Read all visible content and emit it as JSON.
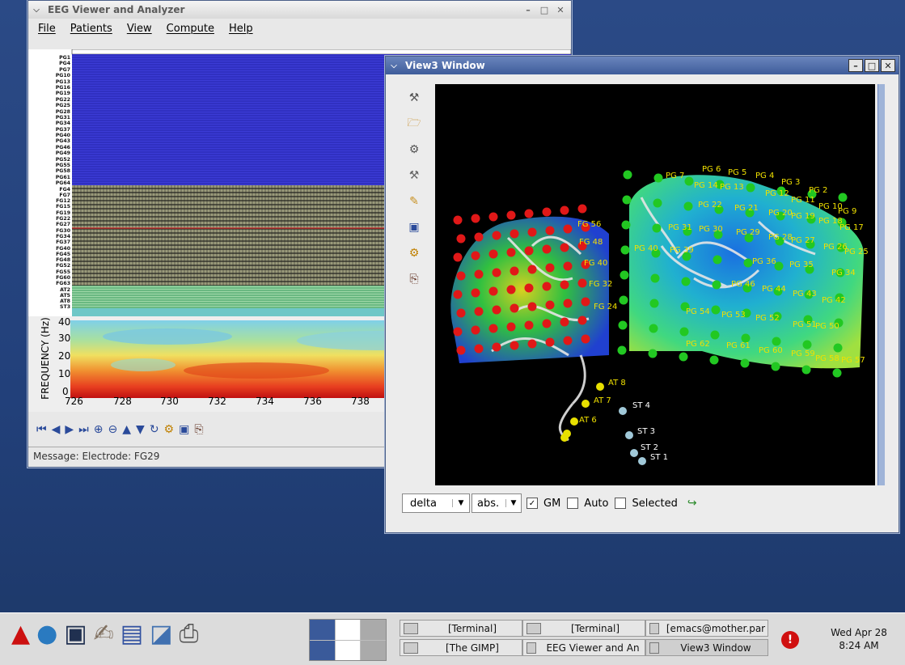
{
  "eeg_window": {
    "title": "EEG Viewer and Analyzer",
    "menu": [
      "File",
      "Patients",
      "View",
      "Compute",
      "Help"
    ],
    "channels": [
      "PG1",
      "PG4",
      "PG7",
      "PG10",
      "PG13",
      "PG16",
      "PG19",
      "PG22",
      "PG25",
      "PG28",
      "PG31",
      "PG34",
      "PG37",
      "PG40",
      "PG43",
      "PG46",
      "PG49",
      "PG52",
      "PG55",
      "PG58",
      "PG61",
      "PG64",
      "FG4",
      "FG7",
      "FG12",
      "FG15",
      "FG19",
      "FG22",
      "FG27",
      "FG30",
      "FG34",
      "FG37",
      "FG40",
      "FG45",
      "FG48",
      "FG52",
      "FG55",
      "FG60",
      "FG63",
      "AT2",
      "AT5",
      "AT8",
      "ST3"
    ],
    "spectrogram": {
      "ylabel": "FREQUENCY (Hz)",
      "yticks": [
        "40",
        "30",
        "20",
        "10",
        "0"
      ],
      "xticks": [
        "726",
        "728",
        "730",
        "732",
        "734",
        "736",
        "738"
      ]
    },
    "message": "Message: Electrode: FG29"
  },
  "view3_window": {
    "title": "View3 Window",
    "band_select": "delta",
    "mode_select": "abs.",
    "checkboxes": [
      {
        "label": "GM",
        "checked": true
      },
      {
        "label": "Auto",
        "checked": false
      },
      {
        "label": "Selected",
        "checked": false
      }
    ],
    "labels": {
      "pg": [
        "PG 7",
        "PG 6",
        "PG 5",
        "PG 4",
        "PG 3",
        "PG 2",
        "PG 14",
        "PG 13",
        "PG 12",
        "PG 11",
        "PG 10",
        "PG 9",
        "PG 22",
        "PG 21",
        "PG 20",
        "PG 19",
        "PG 18",
        "PG 17",
        "PG 31",
        "PG 30",
        "PG 29",
        "PG 28",
        "PG 27",
        "PG 26",
        "PG 25",
        "PG 40",
        "PG 39",
        "PG 36",
        "PG 35",
        "PG 34",
        "PG 46",
        "PG 44",
        "PG 43",
        "PG 42",
        "PG 54",
        "PG 53",
        "PG 52",
        "PG 51",
        "PG 50",
        "PG 62",
        "PG 61",
        "PG 60",
        "PG 59",
        "PG 58",
        "PG 57"
      ],
      "fg": [
        "FG 48",
        "FG 40",
        "FG 32",
        "FG 24",
        "FG 56"
      ],
      "at": [
        "AT 8",
        "AT 7",
        "AT 6"
      ],
      "st": [
        "ST 4",
        "ST 3",
        "ST 2",
        "ST 1"
      ]
    }
  },
  "taskbar": {
    "buttons": [
      {
        "label": "[Terminal]",
        "row": 0,
        "col": 0
      },
      {
        "label": "[Terminal]",
        "row": 0,
        "col": 1
      },
      {
        "label": "[emacs@mother.par",
        "row": 0,
        "col": 2
      },
      {
        "label": "[The GIMP]",
        "row": 1,
        "col": 0
      },
      {
        "label": "EEG Viewer and An",
        "row": 1,
        "col": 1
      },
      {
        "label": "View3 Window",
        "row": 1,
        "col": 2
      }
    ],
    "clock_date": "Wed Apr 28",
    "clock_time": "8:24 AM"
  }
}
